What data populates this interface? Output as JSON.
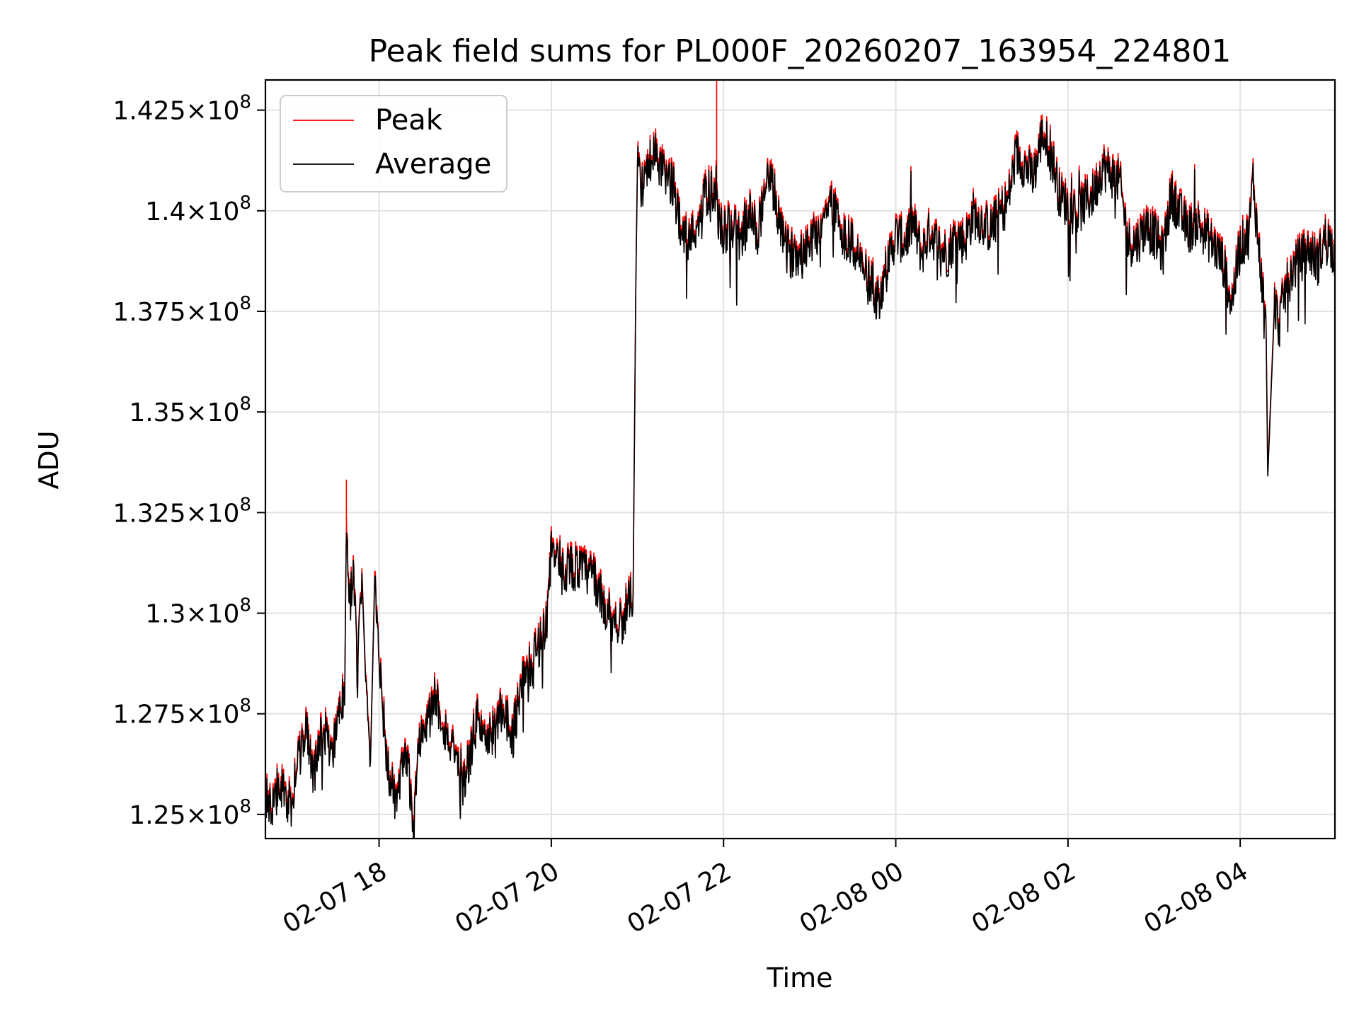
{
  "chart_data": {
    "type": "line",
    "title": "Peak field sums for PL000F_20260207_163954_224801",
    "xlabel": "Time",
    "ylabel": "ADU",
    "xlim": [
      16.68,
      29.1
    ],
    "ylim": [
      124400000,
      143250000
    ],
    "x_ticks": [
      {
        "value": 18,
        "label": "02-07 18"
      },
      {
        "value": 20,
        "label": "02-07 20"
      },
      {
        "value": 22,
        "label": "02-07 22"
      },
      {
        "value": 24,
        "label": "02-08 00"
      },
      {
        "value": 26,
        "label": "02-08 02"
      },
      {
        "value": 28,
        "label": "02-08 04"
      }
    ],
    "y_ticks": [
      {
        "value": 125000000,
        "mantissa": "1.25",
        "base": "10",
        "exp": "8"
      },
      {
        "value": 127500000,
        "mantissa": "1.275",
        "base": "10",
        "exp": "8"
      },
      {
        "value": 130000000,
        "mantissa": "1.3",
        "base": "10",
        "exp": "8"
      },
      {
        "value": 132500000,
        "mantissa": "1.325",
        "base": "10",
        "exp": "8"
      },
      {
        "value": 135000000,
        "mantissa": "1.35",
        "base": "10",
        "exp": "8"
      },
      {
        "value": 137500000,
        "mantissa": "1.375",
        "base": "10",
        "exp": "8"
      },
      {
        "value": 140000000,
        "mantissa": "1.4",
        "base": "10",
        "exp": "8"
      },
      {
        "value": 142500000,
        "mantissa": "1.425",
        "base": "10",
        "exp": "8"
      }
    ],
    "grid": true,
    "legend_position": "top-left",
    "series": [
      {
        "name": "Peak",
        "color": "#ff0000",
        "key_points": [
          [
            16.68,
            125.7
          ],
          [
            16.75,
            125.1
          ],
          [
            16.85,
            126.0
          ],
          [
            16.95,
            125.0
          ],
          [
            17.05,
            126.3
          ],
          [
            17.15,
            127.2
          ],
          [
            17.25,
            126.0
          ],
          [
            17.35,
            127.3
          ],
          [
            17.45,
            126.5
          ],
          [
            17.55,
            128.2
          ],
          [
            17.6,
            127.8
          ],
          [
            17.62,
            133.2
          ],
          [
            17.65,
            130.0
          ],
          [
            17.7,
            131.3
          ],
          [
            17.75,
            128.5
          ],
          [
            17.8,
            131.2
          ],
          [
            17.85,
            128.0
          ],
          [
            17.9,
            126.4
          ],
          [
            17.95,
            131.1
          ],
          [
            18.0,
            129.2
          ],
          [
            18.05,
            127.5
          ],
          [
            18.1,
            126.2
          ],
          [
            18.2,
            125.3
          ],
          [
            18.3,
            126.5
          ],
          [
            18.35,
            126.0
          ],
          [
            18.4,
            125.0
          ],
          [
            18.45,
            126.8
          ],
          [
            18.55,
            127.2
          ],
          [
            18.65,
            128.1
          ],
          [
            18.75,
            127.3
          ],
          [
            18.85,
            126.7
          ],
          [
            18.95,
            125.6
          ],
          [
            19.05,
            126.5
          ],
          [
            19.15,
            127.6
          ],
          [
            19.25,
            126.8
          ],
          [
            19.35,
            127.3
          ],
          [
            19.45,
            127.8
          ],
          [
            19.55,
            127.0
          ],
          [
            19.65,
            128.4
          ],
          [
            19.75,
            128.7
          ],
          [
            19.85,
            129.3
          ],
          [
            19.95,
            129.9
          ],
          [
            20.0,
            131.8
          ],
          [
            20.1,
            131.0
          ],
          [
            20.2,
            131.3
          ],
          [
            20.3,
            131.2
          ],
          [
            20.4,
            131.1
          ],
          [
            20.5,
            131.0
          ],
          [
            20.6,
            130.3
          ],
          [
            20.7,
            130.0
          ],
          [
            20.8,
            129.8
          ],
          [
            20.95,
            130.6
          ],
          [
            20.98,
            138.0
          ],
          [
            21.0,
            141.3
          ],
          [
            21.05,
            140.3
          ],
          [
            21.1,
            141.0
          ],
          [
            21.2,
            141.5
          ],
          [
            21.3,
            141.0
          ],
          [
            21.4,
            140.8
          ],
          [
            21.5,
            139.8
          ],
          [
            21.6,
            139.3
          ],
          [
            21.7,
            139.8
          ],
          [
            21.8,
            140.5
          ],
          [
            21.92,
            143.4
          ],
          [
            21.93,
            140.0
          ],
          [
            22.0,
            139.5
          ],
          [
            22.1,
            139.8
          ],
          [
            22.2,
            139.3
          ],
          [
            22.3,
            140.0
          ],
          [
            22.4,
            139.5
          ],
          [
            22.5,
            141.0
          ],
          [
            22.6,
            140.4
          ],
          [
            22.7,
            139.2
          ],
          [
            22.8,
            139.0
          ],
          [
            22.95,
            139.2
          ],
          [
            23.1,
            139.6
          ],
          [
            23.25,
            140.3
          ],
          [
            23.4,
            139.5
          ],
          [
            23.5,
            139.2
          ],
          [
            23.6,
            138.8
          ],
          [
            23.7,
            138.2
          ],
          [
            23.8,
            137.9
          ],
          [
            23.9,
            138.7
          ],
          [
            24.0,
            139.5
          ],
          [
            24.1,
            139.3
          ],
          [
            24.2,
            139.8
          ],
          [
            24.3,
            139.0
          ],
          [
            24.4,
            139.6
          ],
          [
            24.5,
            139.2
          ],
          [
            24.6,
            139.0
          ],
          [
            24.7,
            139.5
          ],
          [
            24.8,
            139.3
          ],
          [
            24.9,
            140.0
          ],
          [
            25.0,
            139.8
          ],
          [
            25.1,
            139.6
          ],
          [
            25.2,
            140.0
          ],
          [
            25.3,
            140.3
          ],
          [
            25.4,
            141.5
          ],
          [
            25.5,
            141.2
          ],
          [
            25.6,
            140.9
          ],
          [
            25.7,
            142.0
          ],
          [
            25.8,
            141.6
          ],
          [
            25.9,
            140.5
          ],
          [
            26.0,
            140.2
          ],
          [
            26.1,
            140.0
          ],
          [
            26.2,
            140.3
          ],
          [
            26.3,
            140.5
          ],
          [
            26.4,
            141.2
          ],
          [
            26.5,
            141.0
          ],
          [
            26.6,
            140.8
          ],
          [
            26.7,
            139.3
          ],
          [
            26.8,
            139.3
          ],
          [
            26.9,
            139.7
          ],
          [
            27.0,
            139.5
          ],
          [
            27.1,
            139.0
          ],
          [
            27.2,
            140.5
          ],
          [
            27.3,
            140.0
          ],
          [
            27.4,
            139.6
          ],
          [
            27.5,
            139.8
          ],
          [
            27.6,
            139.5
          ],
          [
            27.7,
            139.2
          ],
          [
            27.8,
            138.8
          ],
          [
            27.9,
            137.8
          ],
          [
            28.0,
            139.2
          ],
          [
            28.1,
            139.5
          ],
          [
            28.15,
            140.9
          ],
          [
            28.2,
            139.5
          ],
          [
            28.3,
            137.2
          ],
          [
            28.32,
            133.6
          ],
          [
            28.4,
            137.8
          ],
          [
            28.45,
            137.2
          ],
          [
            28.5,
            137.9
          ],
          [
            28.6,
            138.6
          ],
          [
            28.7,
            138.9
          ],
          [
            28.8,
            139.1
          ],
          [
            28.9,
            138.8
          ],
          [
            29.0,
            139.5
          ],
          [
            29.1,
            139.0
          ]
        ]
      },
      {
        "name": "Average",
        "color": "#000000",
        "key_points": [
          [
            16.68,
            125.6
          ],
          [
            16.75,
            125.0
          ],
          [
            16.85,
            125.9
          ],
          [
            16.95,
            124.9
          ],
          [
            17.05,
            126.2
          ],
          [
            17.15,
            127.1
          ],
          [
            17.25,
            125.9
          ],
          [
            17.35,
            127.2
          ],
          [
            17.45,
            126.4
          ],
          [
            17.55,
            128.0
          ],
          [
            17.6,
            127.7
          ],
          [
            17.62,
            132.3
          ],
          [
            17.65,
            129.9
          ],
          [
            17.7,
            131.1
          ],
          [
            17.75,
            128.4
          ],
          [
            17.8,
            131.0
          ],
          [
            17.85,
            127.9
          ],
          [
            17.9,
            126.3
          ],
          [
            17.95,
            130.9
          ],
          [
            18.0,
            129.1
          ],
          [
            18.05,
            127.4
          ],
          [
            18.1,
            126.1
          ],
          [
            18.2,
            125.2
          ],
          [
            18.3,
            126.4
          ],
          [
            18.35,
            125.9
          ],
          [
            18.4,
            124.6
          ],
          [
            18.45,
            126.7
          ],
          [
            18.55,
            127.1
          ],
          [
            18.65,
            128.0
          ],
          [
            18.75,
            127.2
          ],
          [
            18.85,
            126.6
          ],
          [
            18.95,
            125.5
          ],
          [
            19.05,
            126.4
          ],
          [
            19.15,
            127.5
          ],
          [
            19.25,
            126.7
          ],
          [
            19.35,
            127.2
          ],
          [
            19.45,
            127.7
          ],
          [
            19.55,
            126.9
          ],
          [
            19.65,
            128.3
          ],
          [
            19.75,
            128.6
          ],
          [
            19.85,
            129.2
          ],
          [
            19.95,
            129.8
          ],
          [
            20.0,
            131.7
          ],
          [
            20.1,
            130.9
          ],
          [
            20.2,
            131.2
          ],
          [
            20.3,
            131.1
          ],
          [
            20.4,
            131.0
          ],
          [
            20.5,
            130.9
          ],
          [
            20.6,
            130.2
          ],
          [
            20.7,
            129.9
          ],
          [
            20.8,
            129.7
          ],
          [
            20.95,
            130.5
          ],
          [
            20.98,
            137.8
          ],
          [
            21.0,
            141.2
          ],
          [
            21.05,
            140.2
          ],
          [
            21.1,
            140.9
          ],
          [
            21.2,
            141.4
          ],
          [
            21.3,
            140.9
          ],
          [
            21.4,
            140.7
          ],
          [
            21.5,
            139.7
          ],
          [
            21.6,
            139.2
          ],
          [
            21.7,
            139.7
          ],
          [
            21.8,
            140.4
          ],
          [
            21.92,
            140.6
          ],
          [
            21.93,
            139.9
          ],
          [
            22.0,
            139.4
          ],
          [
            22.1,
            139.7
          ],
          [
            22.2,
            139.2
          ],
          [
            22.3,
            139.9
          ],
          [
            22.4,
            139.4
          ],
          [
            22.5,
            140.9
          ],
          [
            22.6,
            140.3
          ],
          [
            22.7,
            139.1
          ],
          [
            22.8,
            138.9
          ],
          [
            22.95,
            139.1
          ],
          [
            23.1,
            139.5
          ],
          [
            23.25,
            140.2
          ],
          [
            23.4,
            139.4
          ],
          [
            23.5,
            139.1
          ],
          [
            23.6,
            138.7
          ],
          [
            23.7,
            138.1
          ],
          [
            23.8,
            137.8
          ],
          [
            23.9,
            138.6
          ],
          [
            24.0,
            139.4
          ],
          [
            24.1,
            139.2
          ],
          [
            24.2,
            139.7
          ],
          [
            24.3,
            138.9
          ],
          [
            24.4,
            139.5
          ],
          [
            24.5,
            139.1
          ],
          [
            24.6,
            138.9
          ],
          [
            24.7,
            139.4
          ],
          [
            24.8,
            139.2
          ],
          [
            24.9,
            139.9
          ],
          [
            25.0,
            139.7
          ],
          [
            25.1,
            139.5
          ],
          [
            25.2,
            139.9
          ],
          [
            25.3,
            140.2
          ],
          [
            25.4,
            141.4
          ],
          [
            25.5,
            141.1
          ],
          [
            25.6,
            140.8
          ],
          [
            25.7,
            141.9
          ],
          [
            25.8,
            141.5
          ],
          [
            25.9,
            140.4
          ],
          [
            26.0,
            140.1
          ],
          [
            26.1,
            139.9
          ],
          [
            26.2,
            140.2
          ],
          [
            26.3,
            140.4
          ],
          [
            26.4,
            141.1
          ],
          [
            26.5,
            140.9
          ],
          [
            26.6,
            140.7
          ],
          [
            26.7,
            139.2
          ],
          [
            26.8,
            139.2
          ],
          [
            26.9,
            139.6
          ],
          [
            27.0,
            139.4
          ],
          [
            27.1,
            138.9
          ],
          [
            27.2,
            140.4
          ],
          [
            27.3,
            139.9
          ],
          [
            27.4,
            139.5
          ],
          [
            27.5,
            139.7
          ],
          [
            27.6,
            139.4
          ],
          [
            27.7,
            139.1
          ],
          [
            27.8,
            138.7
          ],
          [
            27.9,
            137.7
          ],
          [
            28.0,
            139.1
          ],
          [
            28.1,
            139.4
          ],
          [
            28.15,
            140.8
          ],
          [
            28.2,
            139.4
          ],
          [
            28.3,
            137.1
          ],
          [
            28.32,
            133.4
          ],
          [
            28.4,
            137.7
          ],
          [
            28.45,
            137.1
          ],
          [
            28.5,
            137.8
          ],
          [
            28.6,
            138.5
          ],
          [
            28.7,
            138.8
          ],
          [
            28.8,
            139.0
          ],
          [
            28.9,
            138.7
          ],
          [
            29.0,
            139.4
          ],
          [
            29.1,
            138.9
          ]
        ],
        "units": "x in hours since 02-07 00:00, y in 1e6 ADU"
      }
    ]
  }
}
